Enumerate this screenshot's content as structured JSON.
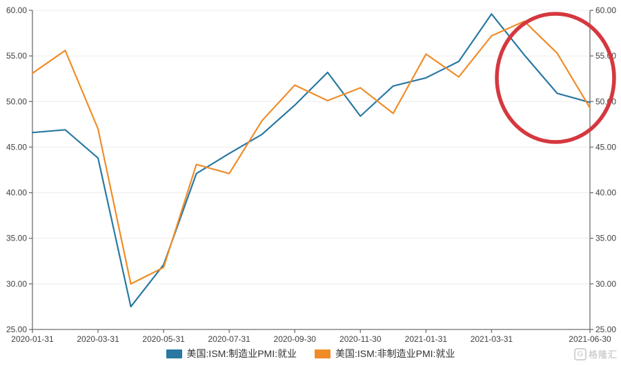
{
  "chart_data": {
    "type": "line",
    "x": [
      "2020-01-31",
      "2020-02-29",
      "2020-03-31",
      "2020-04-30",
      "2020-05-31",
      "2020-06-30",
      "2020-07-31",
      "2020-08-31",
      "2020-09-30",
      "2020-10-31",
      "2020-11-30",
      "2020-12-31",
      "2021-01-31",
      "2021-02-28",
      "2021-03-31",
      "2021-04-30",
      "2021-05-31",
      "2021-06-30"
    ],
    "x_tick_labels": [
      "2020-01-31",
      "2020-03-31",
      "2020-05-31",
      "2020-07-31",
      "2020-09-30",
      "2020-11-30",
      "2021-01-31",
      "2021-03-31",
      "2021-06-30"
    ],
    "x_tick_indices": [
      0,
      2,
      4,
      6,
      8,
      10,
      12,
      14,
      17
    ],
    "ylim": [
      25,
      60
    ],
    "y_ticks": [
      25,
      30,
      35,
      40,
      45,
      50,
      55,
      60
    ],
    "y_tick_labels": [
      "25.00",
      "30.00",
      "35.00",
      "40.00",
      "45.00",
      "50.00",
      "55.00",
      "60.00"
    ],
    "dual_y_axis": true,
    "grid": "horizontal",
    "legend_position": "bottom",
    "series": [
      {
        "name": "美国:ISM:制造业PMI:就业",
        "color": "#2878a2",
        "values": [
          46.6,
          46.9,
          43.8,
          27.5,
          32.1,
          42.1,
          44.3,
          46.4,
          49.6,
          53.2,
          48.4,
          51.7,
          52.6,
          54.4,
          59.6,
          55.1,
          50.9,
          49.9
        ]
      },
      {
        "name": "美国:ISM:非制造业PMI:就业",
        "color": "#ef8c28",
        "values": [
          53.1,
          55.6,
          47.0,
          30.0,
          31.8,
          43.1,
          42.1,
          47.9,
          51.8,
          50.1,
          51.5,
          48.7,
          55.2,
          52.7,
          57.2,
          58.8,
          55.3,
          49.3
        ]
      }
    ],
    "annotation": {
      "type": "ellipse",
      "color": "#d5383f",
      "highlights_x_range": [
        "2021-04-30",
        "2021-06-30"
      ]
    }
  },
  "legend": {
    "items": [
      {
        "label": "美国:ISM:制造业PMI:就业",
        "color": "#2878a2"
      },
      {
        "label": "美国:ISM:非制造业PMI:就业",
        "color": "#ef8c28"
      }
    ]
  },
  "watermark": {
    "logo_letter": "G",
    "text": "格隆汇"
  },
  "colors": {
    "background": "#ffffff",
    "grid": "#ececec",
    "axis": "#6e6e6e",
    "tick_text": "#3f3f3f",
    "watermark": "#d2d2d2"
  }
}
